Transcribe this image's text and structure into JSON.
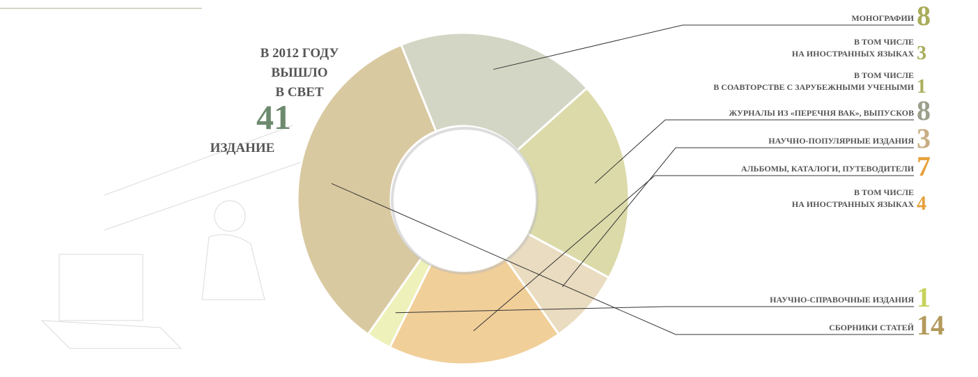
{
  "chart_data": {
    "type": "donut",
    "headline": [
      "В 2012 ГОДУ",
      "ВЫШЛО",
      "В СВЕТ"
    ],
    "total": 41,
    "total_label": "ИЗДАНИЕ",
    "total_color": "#6d8a6f",
    "categories": [
      "МОНОГРАФИИ",
      "ЖУРНАЛЫ ИЗ «ПЕРЕЧНЯ ВАК», ВЫПУСКОВ",
      "НАУЧНО-ПОПУЛЯРНЫЕ ИЗДАНИЯ",
      "АЛЬБОМЫ, КАТАЛОГИ, ПУТЕВОДИТЕЛИ",
      "НАУЧНО-СПРАВОЧНЫЕ ИЗДАНИЯ",
      "СБОРНИКИ СТАТЕЙ"
    ],
    "values": [
      8,
      8,
      3,
      7,
      1,
      14
    ],
    "colors": [
      "#d3d6c4",
      "#dcdaa9",
      "#eadcc0",
      "#f1cf99",
      "#eef1b9",
      "#d9c9a1"
    ],
    "label_colors": [
      "#a9ad5a",
      "#9aa08c",
      "#c9ae84",
      "#e6a03a",
      "#c6d25a",
      "#b39a5c"
    ],
    "breakdown": [
      [
        {
          "label": [
            "В ТОМ ЧИСЛЕ",
            "НА ИНОСТРАННЫХ ЯЗЫКАХ"
          ],
          "value": 3
        },
        {
          "label": [
            "В ТОМ ЧИСЛЕ",
            "В СОАВТОРСТВЕ  С ЗАРУБЕЖНЫМИ УЧЕНЫМИ"
          ],
          "value": 1
        }
      ],
      [],
      [],
      [
        {
          "label": [
            "В ТОМ ЧИСЛЕ",
            "НА ИНОСТРАННЫХ ЯЗЫКАХ"
          ],
          "value": 4
        }
      ],
      [],
      []
    ]
  }
}
